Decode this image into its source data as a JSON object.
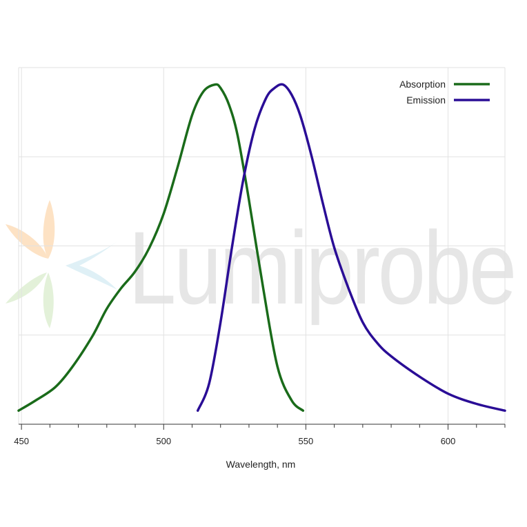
{
  "chart_data": {
    "type": "line",
    "title": "",
    "xlabel": "Wavelength, nm",
    "ylabel": "",
    "xlim": [
      449,
      620
    ],
    "ylim": [
      0,
      1.05
    ],
    "x_ticks": [
      450,
      500,
      550,
      600
    ],
    "x_minor_step": 10,
    "grid": true,
    "legend_position": "top-right",
    "watermark": "Lumiprobe",
    "series": [
      {
        "name": "Absorption",
        "color": "#1a6b1a",
        "x": [
          449,
          455,
          462,
          468,
          475,
          480,
          485,
          490,
          495,
          500,
          505,
          510,
          514,
          518,
          520,
          523,
          526,
          530,
          535,
          540,
          545,
          549
        ],
        "y": [
          0.04,
          0.07,
          0.11,
          0.17,
          0.26,
          0.34,
          0.4,
          0.45,
          0.52,
          0.62,
          0.76,
          0.91,
          0.98,
          1.0,
          0.99,
          0.94,
          0.85,
          0.66,
          0.4,
          0.17,
          0.07,
          0.04
        ]
      },
      {
        "name": "Emission",
        "color": "#2a0d96",
        "x": [
          512,
          516,
          520,
          524,
          528,
          532,
          536,
          539,
          542,
          545,
          548,
          552,
          556,
          560,
          565,
          570,
          575,
          580,
          590,
          600,
          610,
          620
        ],
        "y": [
          0.04,
          0.12,
          0.3,
          0.52,
          0.72,
          0.87,
          0.96,
          0.99,
          1.0,
          0.97,
          0.91,
          0.79,
          0.65,
          0.52,
          0.4,
          0.3,
          0.24,
          0.2,
          0.14,
          0.09,
          0.06,
          0.04
        ]
      }
    ]
  }
}
